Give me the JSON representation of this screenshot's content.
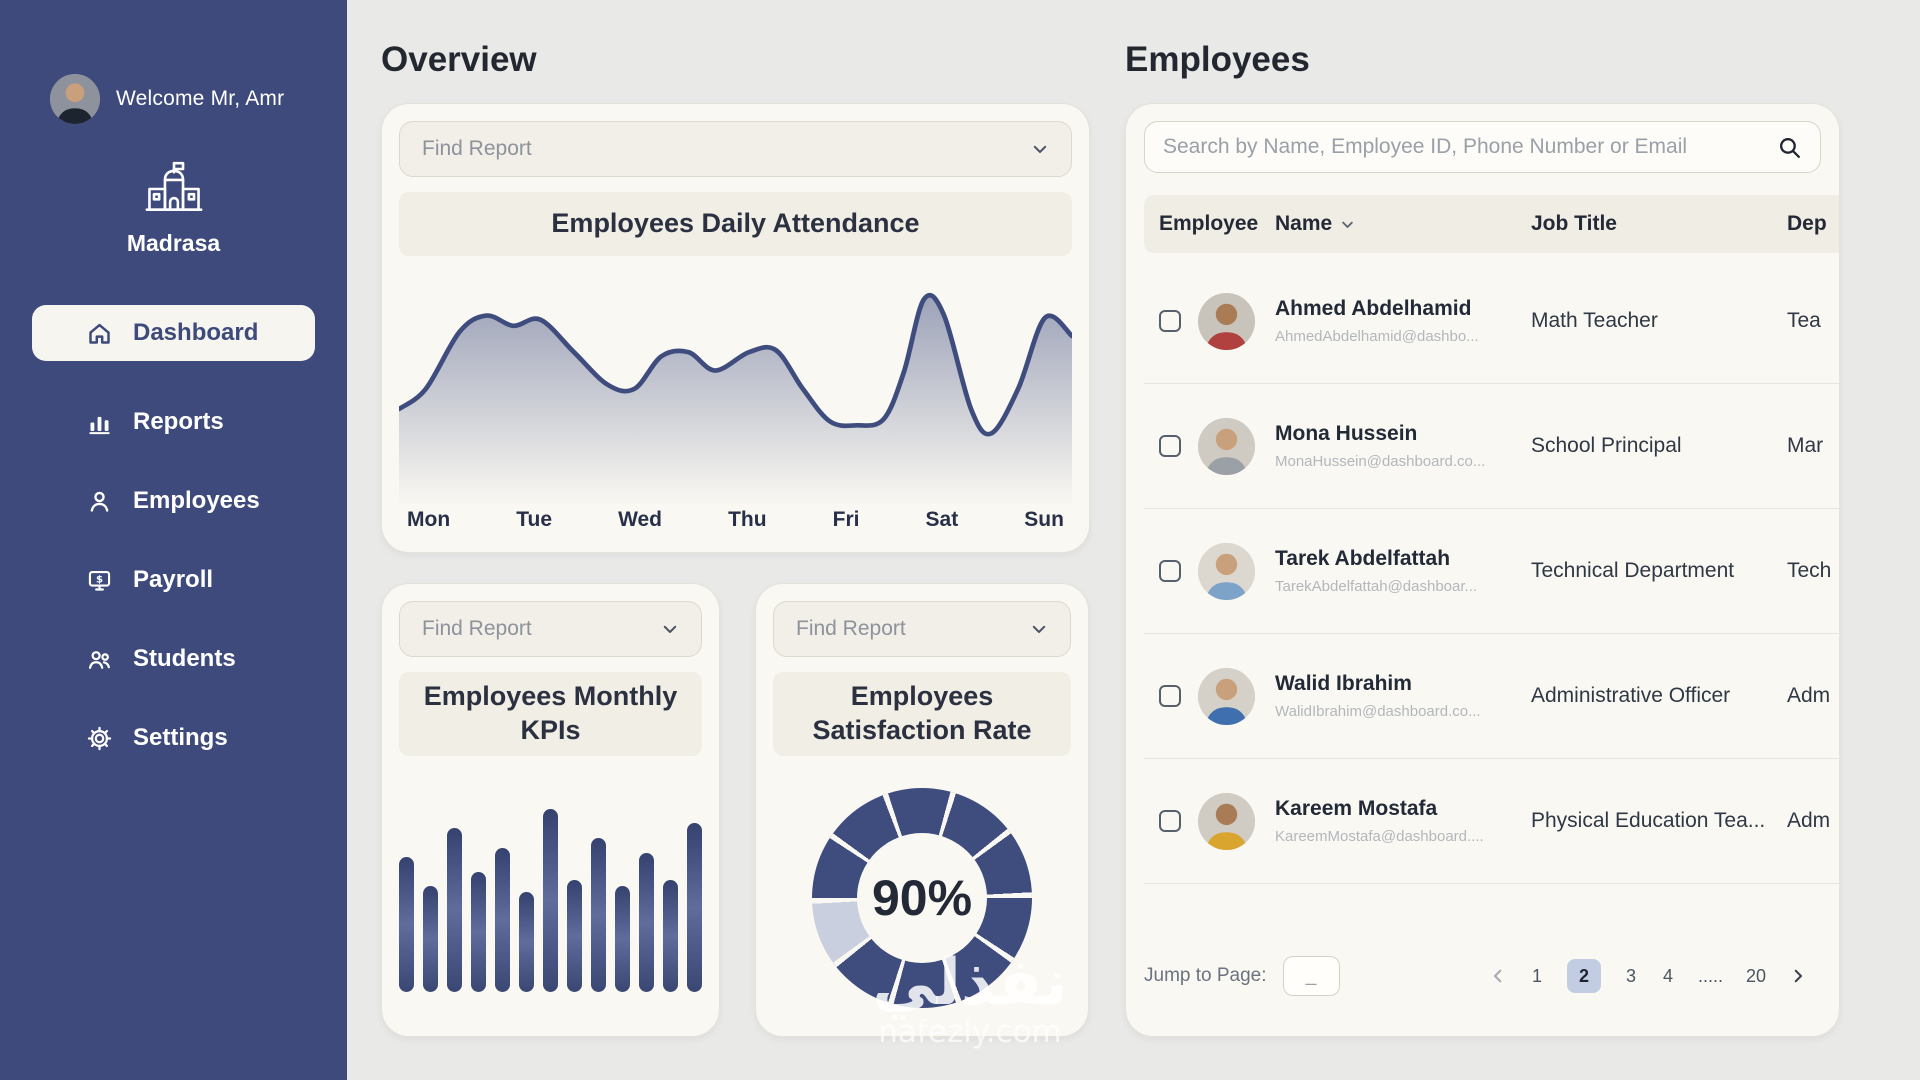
{
  "colors": {
    "accent": "#3e4c7e",
    "sidebar_bg": "#3e4a7b",
    "card_bg": "#faf8f2",
    "page_bg": "#e9e9e8",
    "active_page_bg": "#c2cde3",
    "donut_rest": "#c9cfdf"
  },
  "sidebar": {
    "welcome": "Welcome Mr, Amr",
    "brand": "Madrasa",
    "items": [
      {
        "label": "Dashboard",
        "icon": "home-icon",
        "active": true
      },
      {
        "label": "Reports",
        "icon": "bar-chart-icon",
        "active": false
      },
      {
        "label": "Employees",
        "icon": "person-icon",
        "active": false
      },
      {
        "label": "Payroll",
        "icon": "payroll-icon",
        "active": false
      },
      {
        "label": "Students",
        "icon": "students-icon",
        "active": false
      },
      {
        "label": "Settings",
        "icon": "gear-icon",
        "active": false
      }
    ]
  },
  "overview": {
    "title": "Overview",
    "attendance_card": {
      "find_report": "Find Report",
      "title": "Employees Daily Attendance",
      "days": [
        "Mon",
        "Tue",
        "Wed",
        "Thu",
        "Fri",
        "Sat",
        "Sun"
      ]
    },
    "kpis_card": {
      "find_report": "Find Report",
      "title": "Employees Monthly KPIs"
    },
    "satisfaction_card": {
      "find_report": "Find Report",
      "title": "Employees Satisfaction Rate"
    }
  },
  "chart_data": [
    {
      "type": "area",
      "title": "Employees Daily Attendance",
      "x_labels": [
        "Mon",
        "Tue",
        "Wed",
        "Thu",
        "Fri",
        "Sat",
        "Sun"
      ],
      "ylim": [
        0,
        100
      ],
      "grid": false,
      "points": [
        [
          0,
          42
        ],
        [
          0.04,
          52
        ],
        [
          0.09,
          80
        ],
        [
          0.13,
          88
        ],
        [
          0.17,
          83
        ],
        [
          0.21,
          86
        ],
        [
          0.26,
          70
        ],
        [
          0.31,
          54
        ],
        [
          0.35,
          52
        ],
        [
          0.39,
          68
        ],
        [
          0.43,
          70
        ],
        [
          0.47,
          61
        ],
        [
          0.52,
          70
        ],
        [
          0.56,
          71
        ],
        [
          0.6,
          52
        ],
        [
          0.64,
          36
        ],
        [
          0.68,
          34
        ],
        [
          0.72,
          37
        ],
        [
          0.75,
          60
        ],
        [
          0.78,
          96
        ],
        [
          0.81,
          88
        ],
        [
          0.85,
          42
        ],
        [
          0.88,
          30
        ],
        [
          0.92,
          52
        ],
        [
          0.96,
          87
        ],
        [
          1,
          78
        ]
      ]
    },
    {
      "type": "bar",
      "title": "Employees Monthly KPIs",
      "values": [
        70,
        55,
        85,
        62,
        75,
        52,
        95,
        58,
        80,
        55,
        72,
        58,
        88
      ],
      "ylim": [
        0,
        100
      ]
    },
    {
      "type": "pie",
      "title": "Employees Satisfaction Rate",
      "value": 90,
      "label": "90%",
      "segments": 10
    }
  ],
  "employees": {
    "title": "Employees",
    "search_placeholder": "Search by Name, Employee ID, Phone Number or Email",
    "columns": {
      "employee": "Employee",
      "name": "Name",
      "job": "Job Title",
      "dep": "Dep"
    },
    "rows": [
      {
        "name": "Ahmed Abdelhamid",
        "email": "AhmedAbdelhamid@dashbo...",
        "job": "Math Teacher",
        "dep": "Tea"
      },
      {
        "name": "Mona Hussein",
        "email": "MonaHussein@dashboard.co...",
        "job": "School Principal",
        "dep": "Mar"
      },
      {
        "name": "Tarek Abdelfattah",
        "email": "TarekAbdelfattah@dashboar...",
        "job": "Technical Department",
        "dep": "Tech"
      },
      {
        "name": "Walid Ibrahim",
        "email": "WalidIbrahim@dashboard.co...",
        "job": "Administrative Officer",
        "dep": "Adm"
      },
      {
        "name": "Kareem Mostafa",
        "email": "KareemMostafa@dashboard....",
        "job": "Physical Education Tea...",
        "dep": "Adm"
      }
    ],
    "pagination": {
      "jump_label": "Jump to Page:",
      "jump_placeholder": "_",
      "pages": [
        "1",
        "2",
        "3",
        "4",
        ".....",
        "20"
      ],
      "active_page": "2"
    }
  },
  "watermark": {
    "arabic": "نفذلي",
    "site": "nafezly.com"
  }
}
